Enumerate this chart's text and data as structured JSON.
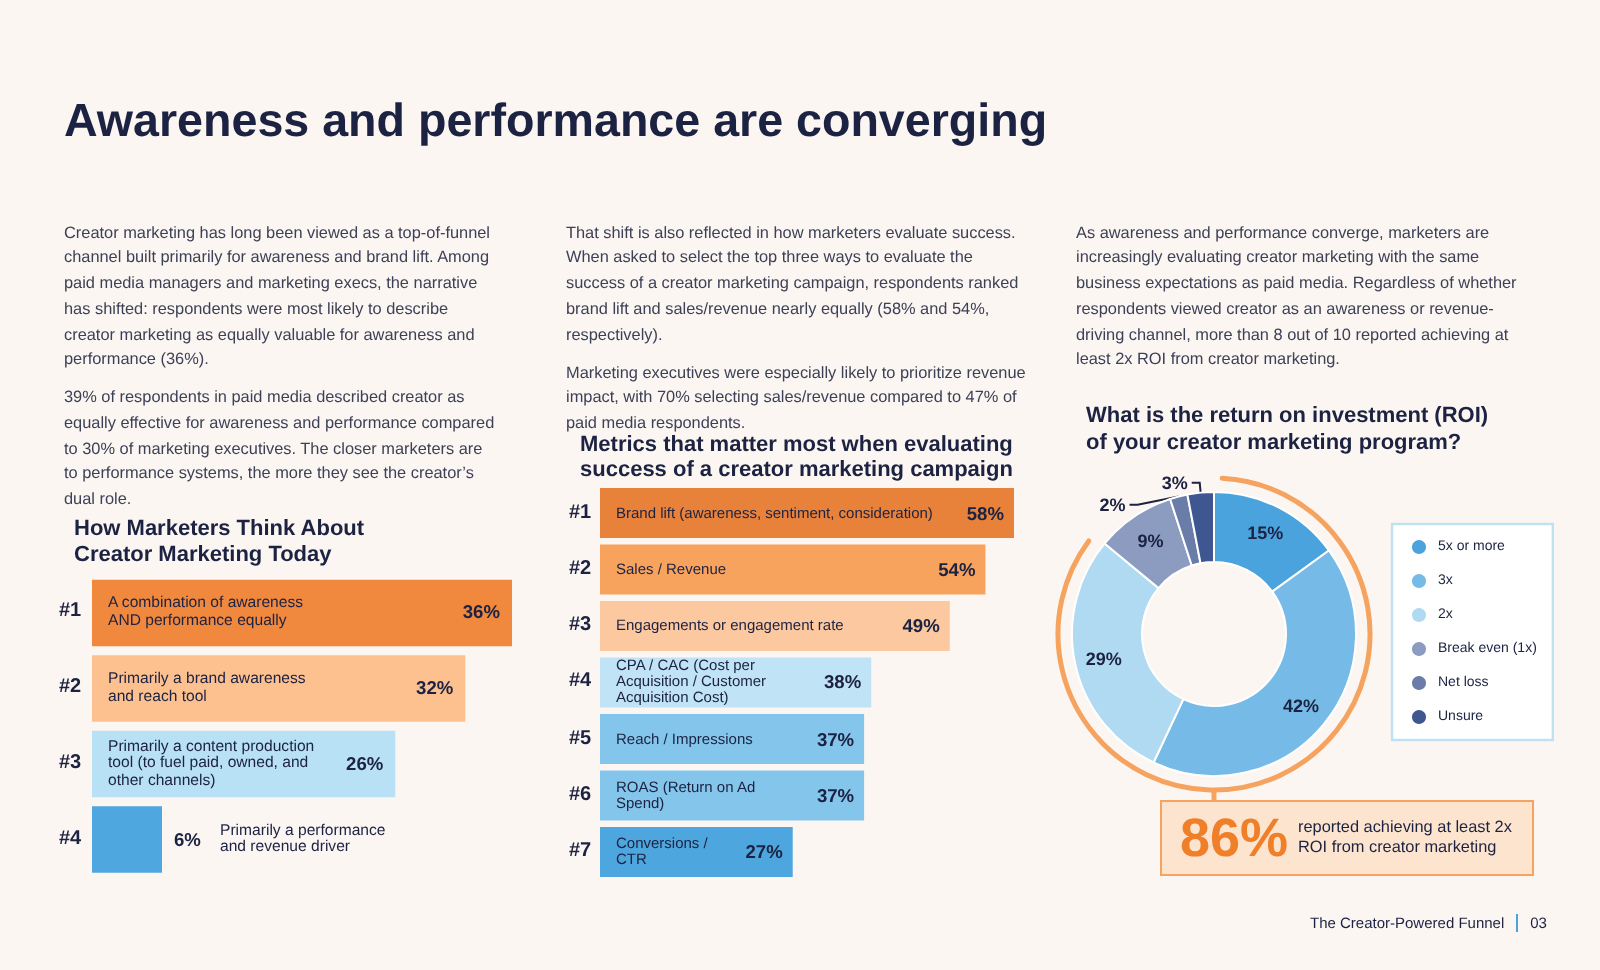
{
  "chart_data": [
    {
      "type": "other",
      "title": "Awareness and performance are converging"
    },
    {
      "type": "bar",
      "orientation": "horizontal",
      "title": "How Marketers Think About Creator Marketing Today",
      "categories": [
        "A combination of awareness AND performance equally",
        "Primarily a brand awareness and reach tool",
        "Primarily a content production tool (to fuel paid, owned, and other channels)",
        "Primarily a performance and revenue driver"
      ],
      "values": [
        36,
        32,
        26,
        6
      ],
      "colors": [
        "#f0883e",
        "#fdc190",
        "#b9e1f5",
        "#4ea7df"
      ],
      "value_labels": [
        "36%",
        "32%",
        "26%",
        "6%"
      ],
      "annotations": [
        "Creator marketing has long been viewed as a top-of-funnel channel built primarily for awareness and brand lift. Among paid media managers and marketing execs, the narrative has shifted: respondents were most likely to describe creator marketing as equally valuable for awareness and performance (36%).",
        "39% of respondents in paid media described creator as equally effective for awareness and performance compared to 30% of marketing executives. The closer marketers are to performance systems, the more they see the creator’s dual role.",
        "#1",
        "#2",
        "#3",
        "#4"
      ]
    },
    {
      "type": "bar",
      "orientation": "horizontal",
      "title": "Metrics that matter most when evaluating success of a creator marketing campaign",
      "categories": [
        "Brand lift (awareness, sentiment, consideration)",
        "Sales / Revenue",
        "Engagements or engagement rate",
        "CPA / CAC (Cost per Acquisition / Customer Acquisition Cost)",
        "Reach / Impressions",
        "ROAS (Return on Ad Spend)",
        "Conversions / CTR"
      ],
      "values": [
        58,
        54,
        49,
        38,
        37,
        37,
        27
      ],
      "colors": [
        "#e8823a",
        "#f8a35d",
        "#fcc8a0",
        "#c0e3f5",
        "#84c5eb",
        "#84c5eb",
        "#4ea6de"
      ],
      "value_labels": [
        "58%",
        "54%",
        "49%",
        "38%",
        "37%",
        "37%",
        "27%"
      ],
      "annotations": [
        "That shift is also reflected in how marketers evaluate success. When asked to select the top three ways to evaluate the success of a creator marketing campaign, respondents ranked brand lift and sales/revenue nearly equally (58% and 54%, respectively).",
        "Marketing executives were especially likely to prioritize revenue impact, with 70% selecting sales/revenue compared to 47% of paid media respondents.",
        "#1",
        "#2",
        "#3",
        "#4",
        "#5",
        "#6",
        "#7"
      ]
    },
    {
      "type": "donut",
      "title": "What is the return on investment (ROI) of your creator marketing program?",
      "categories": [
        "5x or more",
        "3x",
        "2x",
        "Break even (1x)",
        "Net loss",
        "Unsure"
      ],
      "values": [
        15,
        42,
        29,
        9,
        2,
        3
      ],
      "colors": [
        "#4ba3dd",
        "#76bbe7",
        "#b0daf2",
        "#8b9cc0",
        "#6a7da8",
        "#3f5791"
      ],
      "value_labels": [
        "15%",
        "42%",
        "29%",
        "9%",
        "2%",
        "3%"
      ],
      "legend": "right",
      "annotations": [
        "As awareness and performance converge, marketers are increasingly evaluating creator marketing with the same business expectations as paid media. Regardless of whether respondents viewed creator as an awareness or revenue-driving channel, more than 8 out of 10 reported achieving at least 2x ROI from creator marketing.",
        "86%",
        "reported achieving at least 2x ROI from creator marketing",
        "The Creator-Powered Funnel",
        "03"
      ]
    }
  ]
}
